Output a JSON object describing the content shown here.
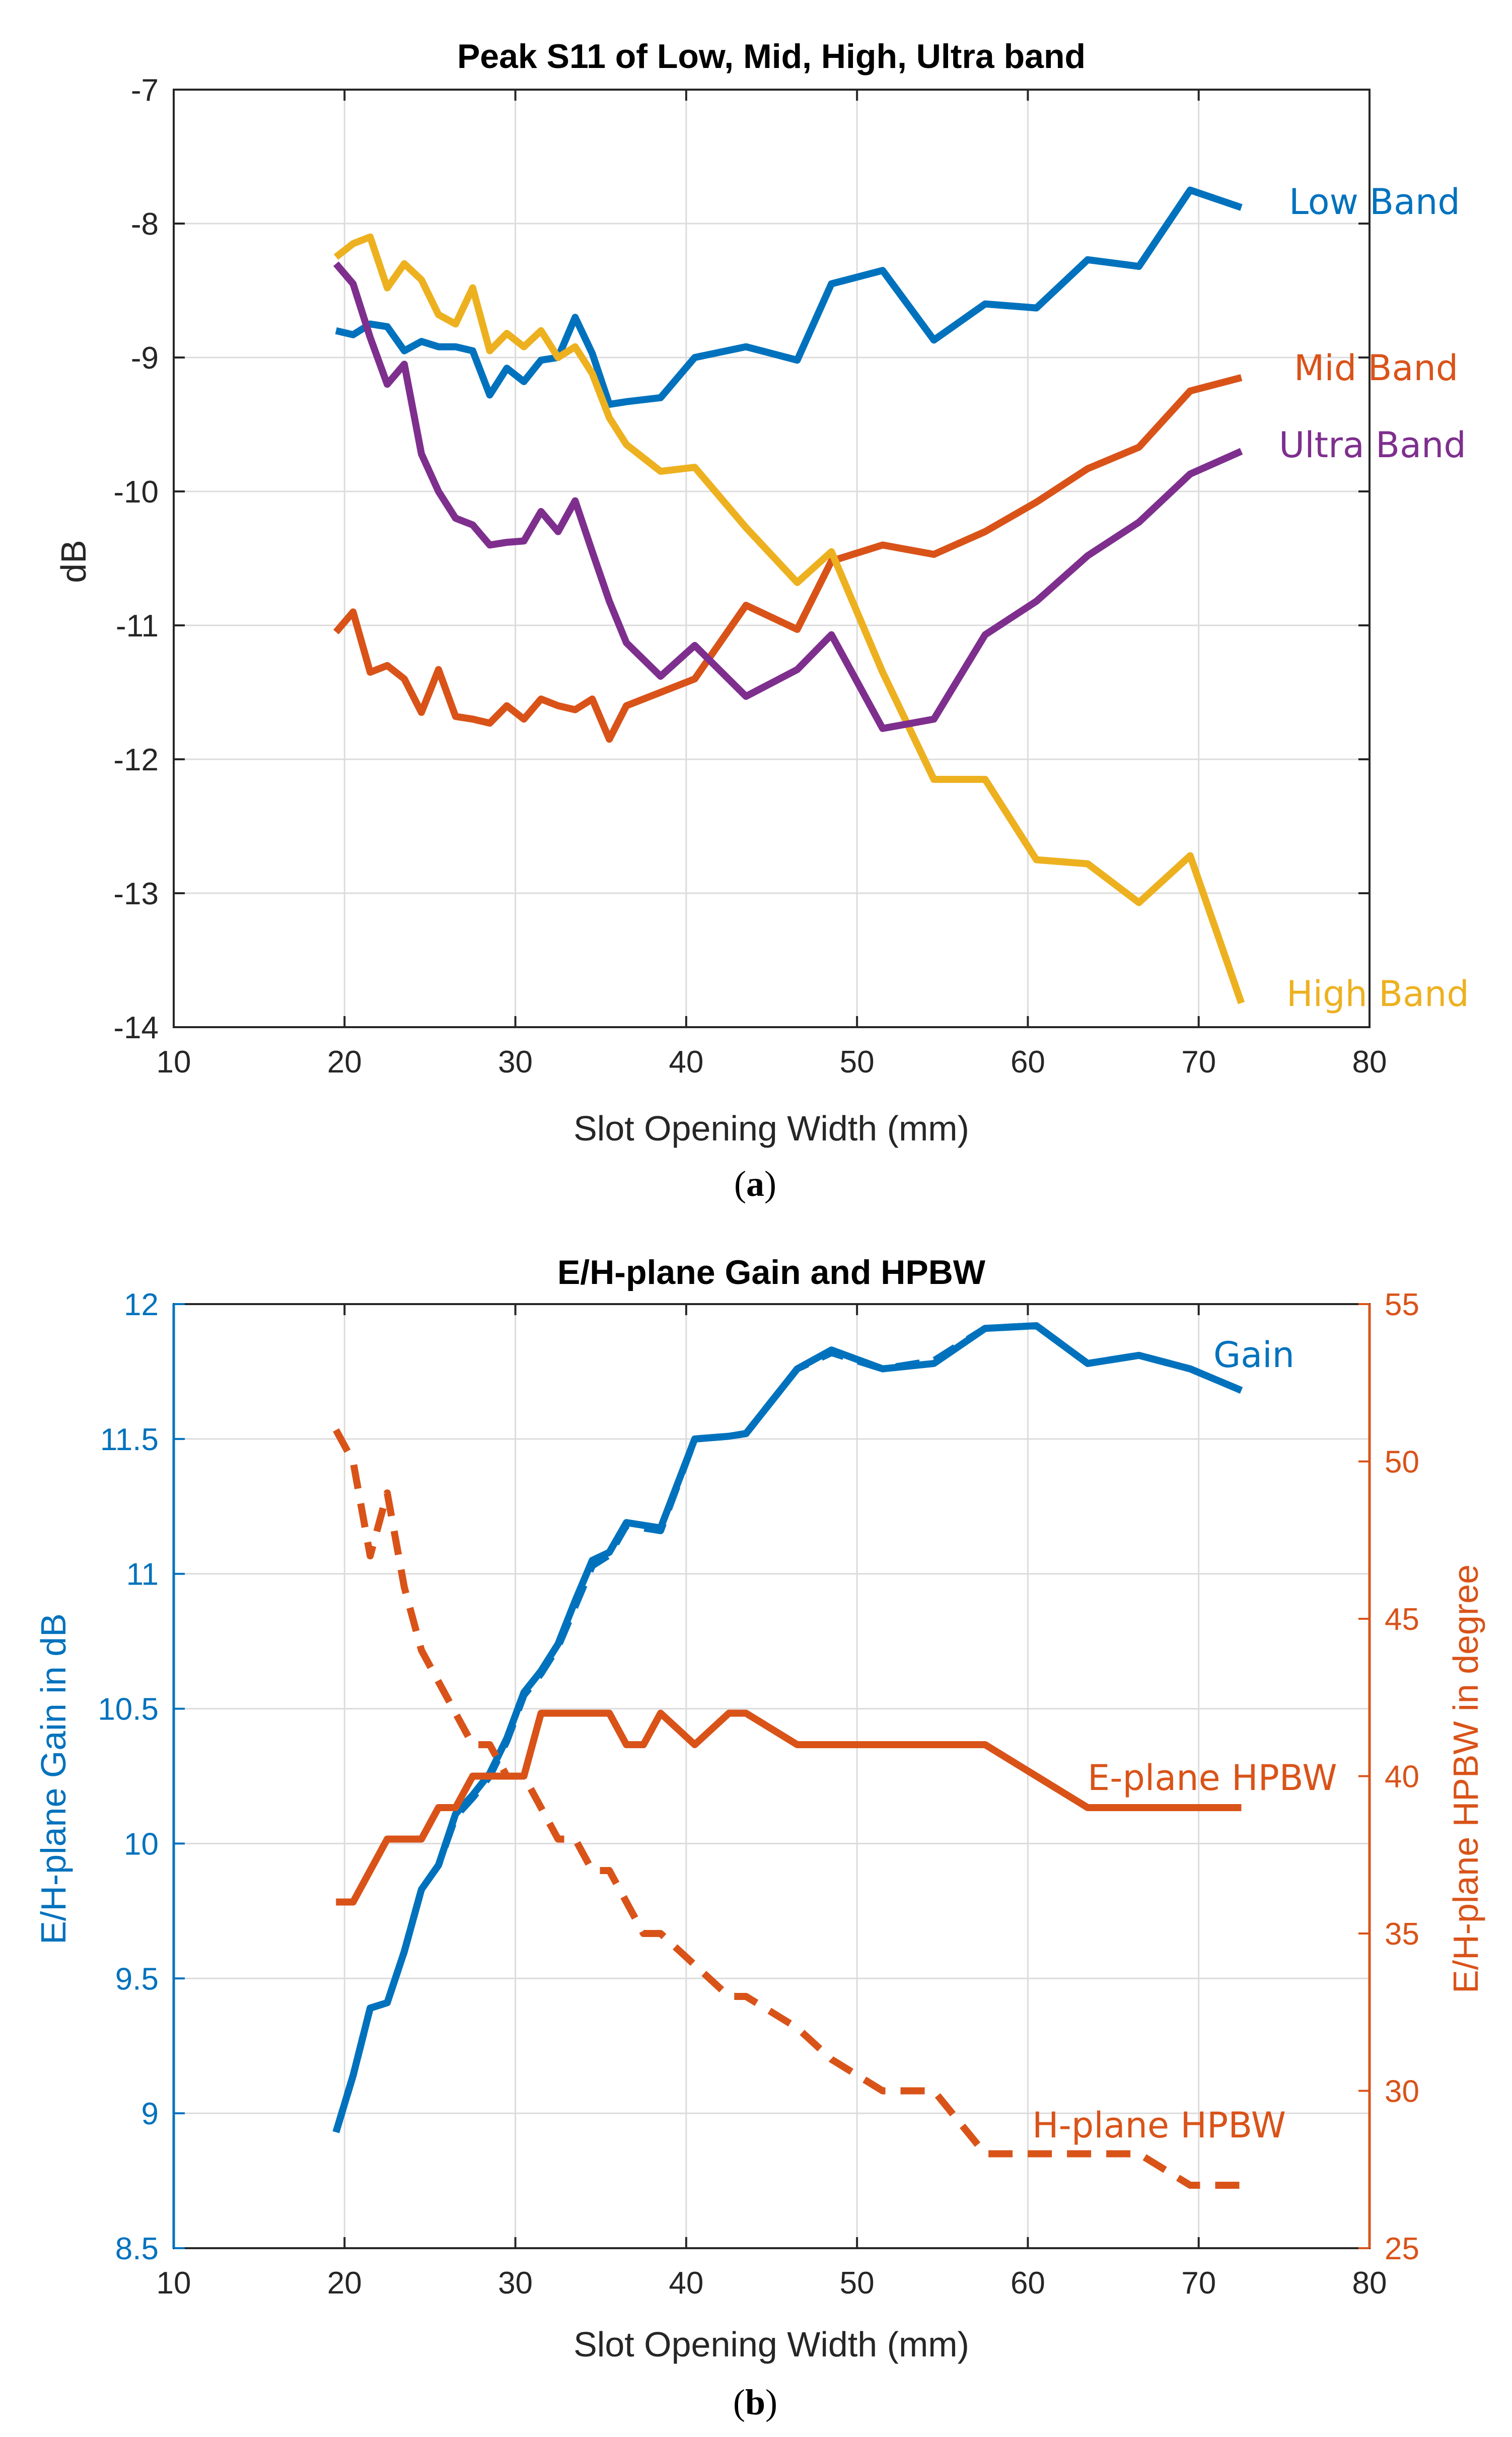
{
  "chart_data": [
    {
      "type": "line",
      "panel": "a",
      "title": "Peak S11 of Low, Mid, High, Ultra band",
      "xlabel": "Slot Opening Width (mm)",
      "ylabel": "dB",
      "xlim": [
        10,
        80
      ],
      "ylim": [
        -14,
        -7
      ],
      "xticks": [
        10,
        20,
        30,
        40,
        50,
        60,
        70,
        80
      ],
      "yticks": [
        -14,
        -13,
        -12,
        -11,
        -10,
        -9,
        -8,
        -7
      ],
      "grid": true,
      "series": [
        {
          "name": "Low Band",
          "label": "Low Band",
          "color": "#0072BD",
          "style": "solid",
          "x": [
            19.5,
            20.5,
            21.5,
            22.5,
            23.5,
            24.5,
            25.5,
            26.5,
            27.5,
            28.5,
            29.5,
            30.5,
            31.5,
            32.5,
            33.5,
            34.5,
            35.5,
            36.5,
            38.5,
            40.5,
            43.5,
            46.5,
            48.5,
            51.5,
            54.5,
            57.5,
            60.5,
            63.5,
            66.5,
            69.5,
            72.5
          ],
          "y": [
            -8.8,
            -8.83,
            -8.75,
            -8.77,
            -8.95,
            -8.88,
            -8.92,
            -8.92,
            -8.95,
            -9.28,
            -9.08,
            -9.18,
            -9.02,
            -9.0,
            -8.7,
            -8.97,
            -9.35,
            -9.33,
            -9.3,
            -9.0,
            -8.92,
            -9.02,
            -8.45,
            -8.35,
            -8.87,
            -8.6,
            -8.63,
            -8.27,
            -8.32,
            -7.75,
            -7.88
          ]
        },
        {
          "name": "Mid Band",
          "label": "Mid Band",
          "color": "#D95319",
          "style": "solid",
          "x": [
            19.5,
            20.5,
            21.5,
            22.5,
            23.5,
            24.5,
            25.5,
            26.5,
            27.5,
            28.5,
            29.5,
            30.5,
            31.5,
            32.5,
            33.5,
            34.5,
            35.5,
            36.5,
            38.5,
            40.5,
            43.5,
            46.5,
            48.5,
            51.5,
            54.5,
            57.5,
            60.5,
            63.5,
            66.5,
            69.5,
            72.5
          ],
          "y": [
            -11.05,
            -10.9,
            -11.35,
            -11.3,
            -11.4,
            -11.65,
            -11.33,
            -11.68,
            -11.7,
            -11.73,
            -11.6,
            -11.7,
            -11.55,
            -11.6,
            -11.63,
            -11.55,
            -11.85,
            -11.6,
            -11.5,
            -11.4,
            -10.85,
            -11.03,
            -10.52,
            -10.4,
            -10.47,
            -10.3,
            -10.08,
            -9.83,
            -9.67,
            -9.25,
            -9.15
          ]
        },
        {
          "name": "High Band",
          "label": "High Band",
          "color": "#EDB120",
          "style": "solid",
          "x": [
            19.5,
            20.5,
            21.5,
            22.5,
            23.5,
            24.5,
            25.5,
            26.5,
            27.5,
            28.5,
            29.5,
            30.5,
            31.5,
            32.5,
            33.5,
            34.5,
            35.5,
            36.5,
            38.5,
            40.5,
            43.5,
            46.5,
            48.5,
            51.5,
            54.5,
            57.5,
            60.5,
            63.5,
            66.5,
            69.5,
            72.5
          ],
          "y": [
            -8.25,
            -8.15,
            -8.1,
            -8.48,
            -8.3,
            -8.42,
            -8.68,
            -8.75,
            -8.48,
            -8.95,
            -8.82,
            -8.92,
            -8.8,
            -9.0,
            -8.92,
            -9.12,
            -9.45,
            -9.65,
            -9.85,
            -9.82,
            -10.27,
            -10.68,
            -10.45,
            -11.35,
            -12.15,
            -12.15,
            -12.75,
            -12.78,
            -13.07,
            -12.72,
            -13.82
          ]
        },
        {
          "name": "Ultra Band",
          "label": "Ultra Band",
          "color": "#7E2F8E",
          "style": "solid",
          "x": [
            19.5,
            20.5,
            21.5,
            22.5,
            23.5,
            24.5,
            25.5,
            26.5,
            27.5,
            28.5,
            29.5,
            30.5,
            31.5,
            32.5,
            33.5,
            34.5,
            35.5,
            36.5,
            38.5,
            40.5,
            43.5,
            46.5,
            48.5,
            51.5,
            54.5,
            57.5,
            60.5,
            63.5,
            66.5,
            69.5,
            72.5
          ],
          "y": [
            -8.3,
            -8.45,
            -8.85,
            -9.2,
            -9.05,
            -9.72,
            -10.0,
            -10.2,
            -10.25,
            -10.4,
            -10.38,
            -10.37,
            -10.15,
            -10.3,
            -10.07,
            -10.45,
            -10.82,
            -11.13,
            -11.38,
            -11.15,
            -11.53,
            -11.33,
            -11.07,
            -11.77,
            -11.7,
            -11.07,
            -10.82,
            -10.48,
            -10.23,
            -9.87,
            -9.7
          ]
        }
      ]
    },
    {
      "type": "line",
      "panel": "b",
      "title": "E/H-plane Gain and HPBW",
      "xlabel": "Slot Opening Width (mm)",
      "ylabel": "E/H-plane Gain in dB",
      "ylabel_right": "E/H-plane HPBW in degree",
      "xlim": [
        10,
        80
      ],
      "ylim": [
        8.5,
        12
      ],
      "ylim_right": [
        25,
        55
      ],
      "xticks": [
        10,
        20,
        30,
        40,
        50,
        60,
        70,
        80
      ],
      "yticks": [
        8.5,
        9,
        9.5,
        10,
        10.5,
        11,
        11.5,
        12
      ],
      "yticks_right": [
        25,
        30,
        35,
        40,
        45,
        50,
        55
      ],
      "grid": true,
      "left_axis_color": "#0072BD",
      "right_axis_color": "#D95319",
      "series": [
        {
          "name": "E-plane Gain",
          "label": "Gain",
          "axis": "left",
          "color": "#0072BD",
          "style": "solid",
          "x": [
            19.5,
            20.5,
            21.5,
            22.5,
            23.5,
            24.5,
            25.5,
            26.5,
            27.5,
            28.5,
            29.5,
            30.5,
            31.5,
            32.5,
            33.5,
            34.5,
            35.5,
            36.5,
            37.5,
            38.5,
            40.5,
            42.5,
            43.5,
            46.5,
            48.5,
            51.5,
            54.5,
            57.5,
            60.5,
            63.5,
            66.5,
            69.5,
            72.5
          ],
          "y": [
            8.93,
            9.14,
            9.39,
            9.41,
            9.6,
            9.83,
            9.92,
            10.11,
            10.18,
            10.26,
            10.39,
            10.56,
            10.64,
            10.74,
            10.9,
            11.05,
            11.08,
            11.19,
            11.18,
            11.17,
            11.5,
            11.51,
            11.52,
            11.76,
            11.83,
            11.76,
            11.78,
            11.91,
            11.92,
            11.78,
            11.81,
            11.76,
            11.68
          ]
        },
        {
          "name": "H-plane Gain",
          "label": "",
          "axis": "left",
          "color": "#0072BD",
          "style": "dashed",
          "x": [
            19.5,
            20.5,
            21.5,
            22.5,
            23.5,
            24.5,
            25.5,
            26.5,
            27.5,
            28.5,
            29.5,
            30.5,
            31.5,
            32.5,
            33.5,
            34.5,
            35.5,
            36.5,
            37.5,
            38.5,
            40.5,
            42.5,
            43.5,
            46.5,
            48.5,
            51.5,
            54.5,
            57.5,
            60.5,
            63.5,
            66.5,
            69.5,
            72.5
          ],
          "y": [
            8.93,
            9.14,
            9.39,
            9.41,
            9.6,
            9.83,
            9.92,
            10.1,
            10.17,
            10.25,
            10.38,
            10.55,
            10.63,
            10.73,
            10.88,
            11.03,
            11.07,
            11.18,
            11.17,
            11.16,
            11.5,
            11.51,
            11.52,
            11.76,
            11.82,
            11.76,
            11.79,
            11.91,
            11.92,
            11.78,
            11.81,
            11.76,
            11.68
          ]
        },
        {
          "name": "E-plane HPBW",
          "label": "E-plane HPBW",
          "axis": "right",
          "color": "#D95319",
          "style": "solid",
          "x": [
            19.5,
            20.5,
            21.5,
            22.5,
            23.5,
            24.5,
            25.5,
            26.5,
            27.5,
            28.5,
            29.5,
            30.5,
            31.5,
            32.5,
            33.5,
            34.5,
            35.5,
            36.5,
            37.5,
            38.5,
            40.5,
            42.5,
            43.5,
            46.5,
            48.5,
            51.5,
            54.5,
            57.5,
            60.5,
            63.5,
            66.5,
            69.5,
            72.5
          ],
          "y": [
            36,
            36,
            37,
            38,
            38,
            38,
            39,
            39,
            40,
            40,
            40,
            40,
            42,
            42,
            42,
            42,
            42,
            41,
            41,
            42,
            41,
            42,
            42,
            41,
            41,
            41,
            41,
            41,
            40,
            39,
            39,
            39,
            39
          ]
        },
        {
          "name": "H-plane HPBW",
          "label": "H-plane HPBW",
          "axis": "right",
          "color": "#D95319",
          "style": "dashed",
          "x": [
            19.5,
            20.5,
            21.5,
            22.5,
            23.5,
            24.5,
            25.5,
            26.5,
            27.5,
            28.5,
            29.5,
            30.5,
            31.5,
            32.5,
            33.5,
            34.5,
            35.5,
            36.5,
            37.5,
            38.5,
            40.5,
            42.5,
            43.5,
            46.5,
            48.5,
            51.5,
            54.5,
            57.5,
            60.5,
            63.5,
            66.5,
            69.5,
            72.5
          ],
          "y": [
            51,
            50,
            47,
            49,
            46,
            44,
            43,
            42,
            41,
            41,
            40,
            40,
            39,
            38,
            38,
            37,
            37,
            36,
            35,
            35,
            34,
            33,
            33,
            32,
            31,
            30,
            30,
            28,
            28,
            28,
            28,
            27,
            27
          ]
        }
      ]
    }
  ],
  "panel_labels": [
    {
      "open": "(",
      "letter": "a",
      "close": ")"
    },
    {
      "open": "(",
      "letter": "b",
      "close": ")"
    }
  ]
}
